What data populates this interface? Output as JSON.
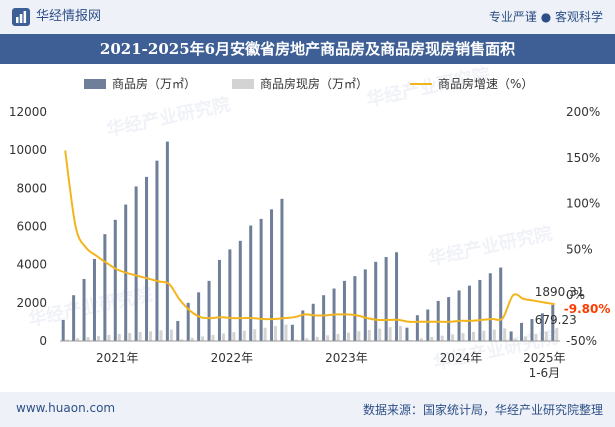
{
  "header": {
    "brand": "华经情报网",
    "tagline": "专业严谨 ● 客观科学",
    "title": "2021-2025年6月安徽省房地产商品房及商品房现房销售面积"
  },
  "footer": {
    "website": "www.huaon.com",
    "source": "数据来源：国家统计局，华经产业研究院整理"
  },
  "watermark": "华经产业研究院",
  "colors": {
    "brand_blue": "#3d5f96",
    "bar_sales": "#6f7e99",
    "bar_existing": "#d3d3d3",
    "line_growth": "#f2b51e",
    "annotation_red": "#ff3b00"
  },
  "chart_data": {
    "type": "bar",
    "title": "2021-2025年6月安徽省房地产商品房及商品房现房销售面积",
    "legend_position": "top",
    "x_tick_labels": [
      "2021年",
      "2022年",
      "2023年",
      "2024年",
      "2025年\n1-6月"
    ],
    "months_per_year": [
      11,
      11,
      11,
      11,
      5
    ],
    "left_axis": {
      "min": 0,
      "max": 12000,
      "step": 2000,
      "ticks": [
        "0",
        "2000",
        "4000",
        "6000",
        "8000",
        "10000",
        "12000"
      ]
    },
    "right_axis": {
      "min": -50,
      "max": 200,
      "step": 50,
      "ticks": [
        "-50%",
        "0%",
        "50%",
        "100%",
        "150%",
        "200%"
      ]
    },
    "series": [
      {
        "name": "商品房（万㎡）",
        "kind": "bar",
        "axis": "left",
        "values": [
          1100,
          2400,
          3250,
          4300,
          5600,
          6350,
          7150,
          8100,
          8600,
          9450,
          10450,
          1050,
          2000,
          2550,
          3150,
          4250,
          4800,
          5250,
          6050,
          6400,
          6900,
          7450,
          850,
          1600,
          1950,
          2400,
          2750,
          3150,
          3400,
          3750,
          4150,
          4400,
          4650,
          700,
          1350,
          1650,
          2100,
          2300,
          2650,
          2900,
          3200,
          3550,
          3850,
          500,
          950,
          1150,
          1450,
          1890.31
        ]
      },
      {
        "name": "商品房现房（万㎡）",
        "kind": "bar",
        "axis": "left",
        "values": [
          80,
          150,
          200,
          260,
          320,
          370,
          420,
          470,
          510,
          560,
          600,
          90,
          170,
          240,
          310,
          390,
          460,
          540,
          620,
          700,
          780,
          860,
          70,
          150,
          220,
          300,
          370,
          440,
          510,
          580,
          650,
          720,
          790,
          60,
          140,
          210,
          280,
          350,
          410,
          480,
          540,
          600,
          660,
          110,
          240,
          370,
          500,
          679.23
        ]
      },
      {
        "name": "商品房增速（%）",
        "kind": "line",
        "axis": "right",
        "values": [
          158,
          75,
          52,
          43,
          35,
          28,
          24,
          21,
          18,
          15,
          12,
          -5,
          -17,
          -24,
          -25,
          -24,
          -25,
          -25,
          -25,
          -26,
          -26,
          -25,
          -24,
          -21,
          -22,
          -22,
          -21,
          -21,
          -22,
          -25,
          -27,
          -27,
          -27,
          -29,
          -29,
          -29,
          -29,
          -29,
          -28,
          -28,
          -27,
          -26,
          -25,
          0,
          -4,
          -6,
          -8,
          -9.8
        ]
      }
    ],
    "annotations": {
      "sales_last": "1890.31",
      "existing_last": "679.23",
      "growth_last": "-9.80%"
    }
  }
}
